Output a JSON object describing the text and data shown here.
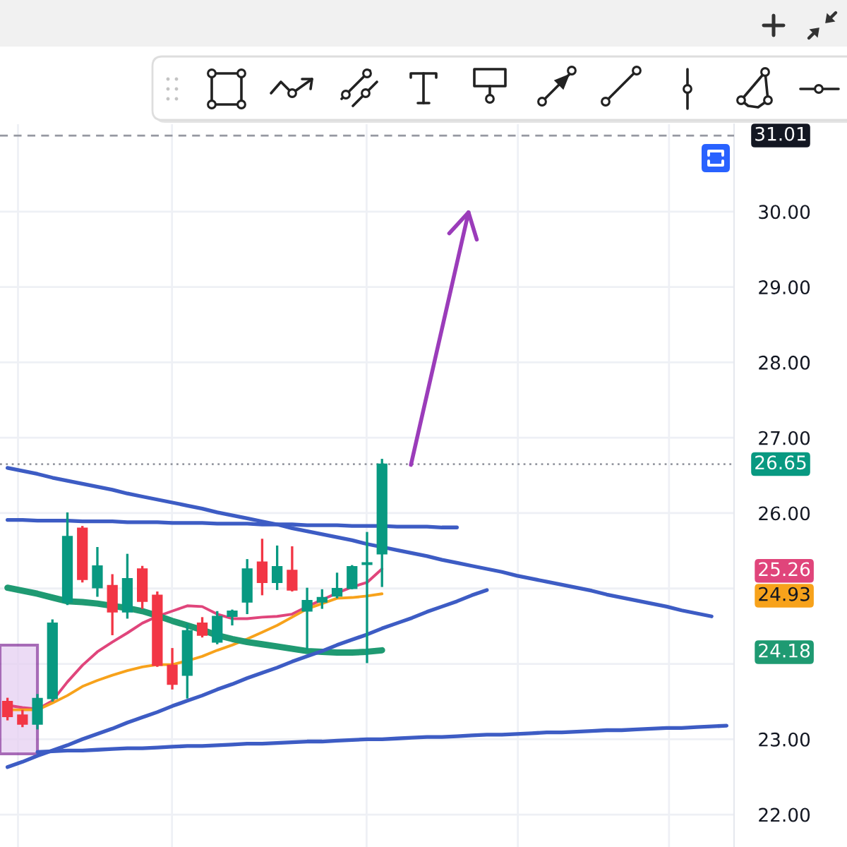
{
  "chart_data": {
    "type": "candlestick",
    "categories": [
      null,
      null,
      null,
      null,
      null,
      null,
      null,
      null,
      null,
      null,
      null,
      null,
      null,
      null,
      null,
      null,
      null,
      null,
      null,
      null,
      null,
      null,
      null,
      null,
      null,
      null,
      null,
      null,
      null,
      null,
      null,
      null,
      null,
      null,
      null,
      null,
      null,
      null,
      null,
      null,
      null,
      null,
      null,
      null,
      null,
      null,
      null,
      null,
      null
    ],
    "ohlc": [
      [
        23.5,
        23.55,
        23.25,
        23.3
      ],
      [
        23.32,
        23.39,
        23.16,
        23.2
      ],
      [
        23.2,
        23.6,
        23.13,
        23.54
      ],
      [
        23.54,
        24.59,
        23.5,
        24.54
      ],
      [
        24.82,
        26.01,
        24.78,
        25.69
      ],
      [
        25.8,
        25.83,
        25.08,
        25.12
      ],
      [
        25.01,
        25.55,
        24.89,
        25.3
      ],
      [
        25.04,
        25.19,
        24.38,
        24.69
      ],
      [
        24.69,
        25.46,
        24.6,
        25.13
      ],
      [
        25.26,
        25.3,
        24.73,
        24.83
      ],
      [
        24.91,
        24.96,
        23.96,
        23.98
      ],
      [
        23.98,
        24.21,
        23.66,
        23.73
      ],
      [
        23.85,
        24.53,
        23.54,
        24.44
      ],
      [
        24.54,
        24.62,
        24.35,
        24.38
      ],
      [
        24.29,
        24.7,
        24.26,
        24.63
      ],
      [
        24.63,
        24.72,
        24.51,
        24.7
      ],
      [
        24.82,
        25.39,
        24.66,
        25.26
      ],
      [
        25.35,
        25.66,
        24.91,
        25.08
      ],
      [
        25.08,
        25.57,
        24.98,
        25.29
      ],
      [
        25.24,
        25.56,
        24.96,
        24.98
      ],
      [
        24.7,
        25.01,
        24.19,
        24.84
      ],
      [
        24.82,
        24.99,
        24.73,
        24.88
      ],
      [
        24.9,
        25.21,
        24.87,
        25.0
      ],
      [
        25.0,
        25.31,
        24.99,
        25.29
      ],
      [
        25.32,
        25.75,
        24.01,
        25.34
      ],
      [
        25.46,
        26.72,
        25.02,
        26.65
      ],
      null,
      null,
      null,
      null,
      null,
      null,
      null,
      null,
      null,
      null,
      null,
      null,
      null,
      null,
      null,
      null,
      null,
      null,
      null,
      null,
      null,
      null,
      null
    ],
    "colors": [
      "#f23645",
      "#f23645",
      "#089981",
      "#089981",
      "#089981",
      "#f23645",
      "#089981",
      "#f23645",
      "#089981",
      "#f23645",
      "#f23645",
      "#f23645",
      "#089981",
      "#f23645",
      "#089981",
      "#089981",
      "#089981",
      "#f23645",
      "#089981",
      "#f23645",
      "#089981",
      "#089981",
      "#089981",
      "#089981",
      "#089981",
      "#089981",
      null,
      null,
      null,
      null,
      null,
      null,
      null,
      null,
      null,
      null,
      null,
      null,
      null,
      null,
      null,
      null,
      null,
      null,
      null,
      null,
      null,
      null,
      null
    ],
    "ylim": [
      21.57,
      31.16
    ],
    "yticks": [
      {
        "value": 22,
        "label": "22.00"
      },
      {
        "value": 23,
        "label": "23.00"
      },
      {
        "value": 24,
        "label": null
      },
      24.18,
      24.93,
      {
        "value": 25,
        "label": null
      },
      25.26,
      {
        "value": 26,
        "label": "26.00"
      },
      {
        "value": 27,
        "label": "27.00"
      },
      {
        "value": 28,
        "label": "28.00"
      },
      {
        "value": 29,
        "label": "29.00"
      },
      {
        "value": 30,
        "label": "30.00"
      }
    ],
    "grid": true,
    "tick_labels": "y",
    "ref_lines": [
      {
        "axis": "y",
        "value": 31.01,
        "label": "31.01",
        "color": "#9598a1",
        "line_style": "dashed"
      },
      {
        "axis": "y",
        "value": 26.65,
        "label": "26.65",
        "color": "#9598a1",
        "line_style": "dotted"
      }
    ],
    "series": [
      {
        "type": "line",
        "color": "#e0457b",
        "values": [
          23.45,
          23.42,
          23.4,
          23.51,
          23.76,
          23.98,
          24.16,
          24.29,
          24.41,
          24.54,
          24.63,
          24.7,
          24.77,
          24.76,
          24.66,
          24.6,
          24.6,
          24.62,
          24.63,
          24.66,
          24.76,
          24.85,
          24.94,
          25.02,
          25.08,
          25.26,
          null,
          null,
          null,
          null,
          null,
          null,
          null,
          null,
          null,
          null,
          null,
          null,
          null,
          null,
          null,
          null,
          null,
          null,
          null,
          null,
          null,
          null,
          null
        ]
      },
      {
        "type": "line",
        "color": "#f7a21b",
        "values": [
          23.39,
          23.39,
          23.39,
          23.48,
          23.58,
          23.7,
          23.78,
          23.85,
          23.91,
          23.96,
          23.99,
          23.99,
          24.04,
          24.1,
          24.18,
          24.25,
          24.33,
          24.42,
          24.51,
          24.62,
          24.73,
          24.8,
          24.87,
          24.88,
          24.9,
          24.93,
          null,
          null,
          null,
          null,
          null,
          null,
          null,
          null,
          null,
          null,
          null,
          null,
          null,
          null,
          null,
          null,
          null,
          null,
          null,
          null,
          null,
          null,
          null
        ]
      },
      {
        "type": "line",
        "color": "#1f9a72",
        "values": [
          25.01,
          24.97,
          24.93,
          24.88,
          24.83,
          24.82,
          24.8,
          24.77,
          24.74,
          24.7,
          24.64,
          24.57,
          24.51,
          24.45,
          24.38,
          24.33,
          24.29,
          24.26,
          24.23,
          24.2,
          24.17,
          24.16,
          24.15,
          24.15,
          24.16,
          24.18,
          null,
          null,
          null,
          null,
          null,
          null,
          null,
          null,
          null,
          null,
          null,
          null,
          null,
          null,
          null,
          null,
          null,
          null,
          null,
          null,
          null,
          null,
          null
        ]
      },
      {
        "type": "line",
        "color": "#3d5cc4",
        "values": [
          26.6,
          26.56,
          26.52,
          26.47,
          26.43,
          26.39,
          26.35,
          26.31,
          26.26,
          26.22,
          26.18,
          26.14,
          26.1,
          26.06,
          26.01,
          25.97,
          25.93,
          25.89,
          25.85,
          25.8,
          25.76,
          25.72,
          25.68,
          25.64,
          25.59,
          25.55,
          25.51,
          25.47,
          25.43,
          25.38,
          25.34,
          25.3,
          25.26,
          25.22,
          25.17,
          25.13,
          25.09,
          25.05,
          25.01,
          24.97,
          24.92,
          24.88,
          24.84,
          24.8,
          24.76,
          24.71,
          24.67,
          24.63,
          null
        ]
      },
      {
        "type": "line",
        "color": "#3d5cc4",
        "values": [
          25.91,
          25.91,
          25.9,
          25.9,
          25.9,
          25.89,
          25.89,
          25.89,
          25.88,
          25.88,
          25.88,
          25.87,
          25.87,
          25.87,
          25.86,
          25.86,
          25.86,
          25.85,
          25.85,
          25.85,
          25.84,
          25.84,
          25.84,
          25.83,
          25.83,
          25.83,
          25.82,
          25.82,
          25.82,
          25.81,
          25.81,
          null,
          null,
          null,
          null,
          null,
          null,
          null,
          null,
          null,
          null,
          null,
          null,
          null,
          null,
          null,
          null,
          null,
          null
        ]
      },
      {
        "type": "line",
        "color": "#3d5cc4",
        "values": [
          22.63,
          22.7,
          22.78,
          22.85,
          22.92,
          23.0,
          23.07,
          23.14,
          23.22,
          23.29,
          23.36,
          23.44,
          23.51,
          23.58,
          23.66,
          23.73,
          23.81,
          23.88,
          23.95,
          24.03,
          24.1,
          24.17,
          24.25,
          24.32,
          24.39,
          24.47,
          24.54,
          24.61,
          24.69,
          24.76,
          24.83,
          24.91,
          24.98,
          null,
          null,
          null,
          null,
          null,
          null,
          null,
          null,
          null,
          null,
          null,
          null,
          null,
          null,
          null,
          null
        ]
      },
      {
        "type": "line",
        "color": "#3d5cc4",
        "values": [
          null,
          null,
          22.83,
          22.84,
          22.85,
          22.85,
          22.86,
          22.87,
          22.88,
          22.88,
          22.89,
          22.9,
          22.91,
          22.91,
          22.92,
          22.93,
          22.94,
          22.94,
          22.95,
          22.96,
          22.97,
          22.97,
          22.98,
          22.99,
          23.0,
          23.0,
          23.01,
          23.02,
          23.03,
          23.03,
          23.04,
          23.05,
          23.06,
          23.06,
          23.07,
          23.08,
          23.09,
          23.09,
          23.1,
          23.11,
          23.12,
          23.12,
          23.13,
          23.14,
          23.15,
          23.15,
          23.16,
          23.17,
          23.18
        ]
      }
    ]
  }
}
